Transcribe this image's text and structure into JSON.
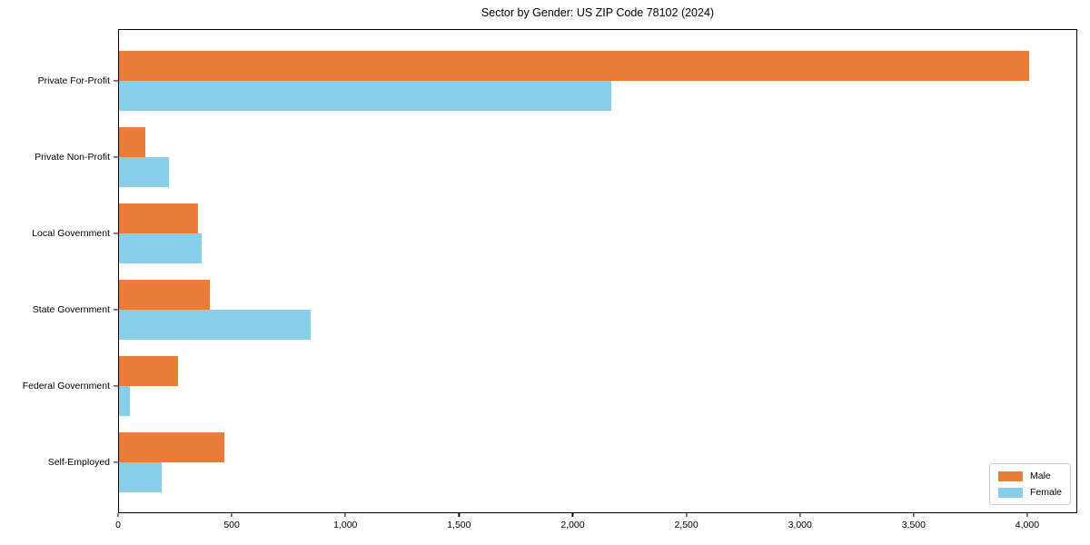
{
  "chart_data": {
    "type": "bar",
    "orientation": "horizontal",
    "title": "Sector by Gender: US ZIP Code 78102 (2024)",
    "categories": [
      "Private For-Profit",
      "Private Non-Profit",
      "Local Government",
      "State Government",
      "Federal Government",
      "Self-Employed"
    ],
    "series": [
      {
        "name": "Male",
        "color": "#e87d3a",
        "values": [
          4010,
          115,
          350,
          400,
          260,
          465
        ]
      },
      {
        "name": "Female",
        "color": "#87ceeb",
        "values": [
          2170,
          220,
          365,
          845,
          50,
          190
        ]
      }
    ],
    "xlabel": "",
    "ylabel": "",
    "xlim": [
      0,
      4220
    ],
    "x_ticks": [
      0,
      500,
      1000,
      1500,
      2000,
      2500,
      3000,
      3500,
      4000
    ],
    "x_tick_labels": [
      "0",
      "500",
      "1,000",
      "1,500",
      "2,000",
      "2,500",
      "3,000",
      "3,500",
      "4,000"
    ],
    "legend": {
      "position": "lower right"
    },
    "grid": false,
    "background_color": "#ffffff",
    "axis_color": "#000000"
  }
}
